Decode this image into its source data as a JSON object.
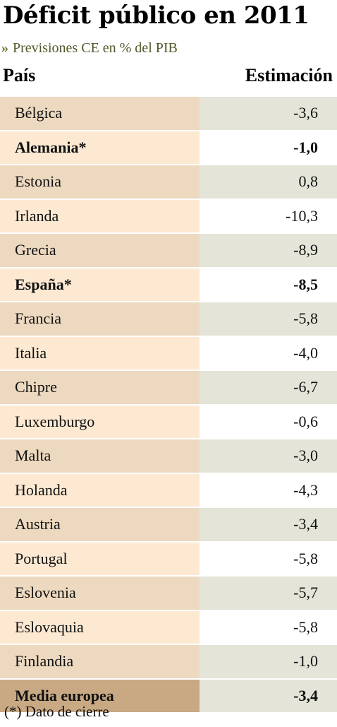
{
  "title": "Déficit público en 2011",
  "subtitle": "Previsiones CE en % del PIB",
  "header": {
    "country": "País",
    "value": "Estimación"
  },
  "footnote": "(*) Dato de cierre",
  "chart_data": {
    "type": "table",
    "title": "Déficit público en 2011",
    "subtitle": "Previsiones CE en % del PIB",
    "columns": [
      "País",
      "Estimación"
    ],
    "rows": [
      {
        "country": "Bélgica",
        "value": "-3,6",
        "bold": false
      },
      {
        "country": "Alemania*",
        "value": "-1,0",
        "bold": true
      },
      {
        "country": "Estonia",
        "value": "0,8",
        "bold": false
      },
      {
        "country": "Irlanda",
        "value": "-10,3",
        "bold": false
      },
      {
        "country": "Grecia",
        "value": "-8,9",
        "bold": false
      },
      {
        "country": "España*",
        "value": "-8,5",
        "bold": true
      },
      {
        "country": "Francia",
        "value": "-5,8",
        "bold": false
      },
      {
        "country": "Italia",
        "value": "-4,0",
        "bold": false
      },
      {
        "country": "Chipre",
        "value": "-6,7",
        "bold": false
      },
      {
        "country": "Luxemburgo",
        "value": "-0,6",
        "bold": false
      },
      {
        "country": "Malta",
        "value": "-3,0",
        "bold": false
      },
      {
        "country": "Holanda",
        "value": "-4,3",
        "bold": false
      },
      {
        "country": "Austria",
        "value": "-3,4",
        "bold": false
      },
      {
        "country": "Portugal",
        "value": "-5,8",
        "bold": false
      },
      {
        "country": "Eslovenia",
        "value": "-5,7",
        "bold": false
      },
      {
        "country": "Eslovaquia",
        "value": "-5,8",
        "bold": false
      },
      {
        "country": "Finlandia",
        "value": "-1,0",
        "bold": false
      },
      {
        "country": "Media europea",
        "value": "-3,4",
        "bold": true,
        "summary": true
      }
    ],
    "colors": {
      "row_band": "#edd9c0",
      "row_light": "#fde9d2",
      "value_band": "#e4e5d8",
      "summary": "#c8a984",
      "subtitle": "#4f5a2a"
    }
  }
}
